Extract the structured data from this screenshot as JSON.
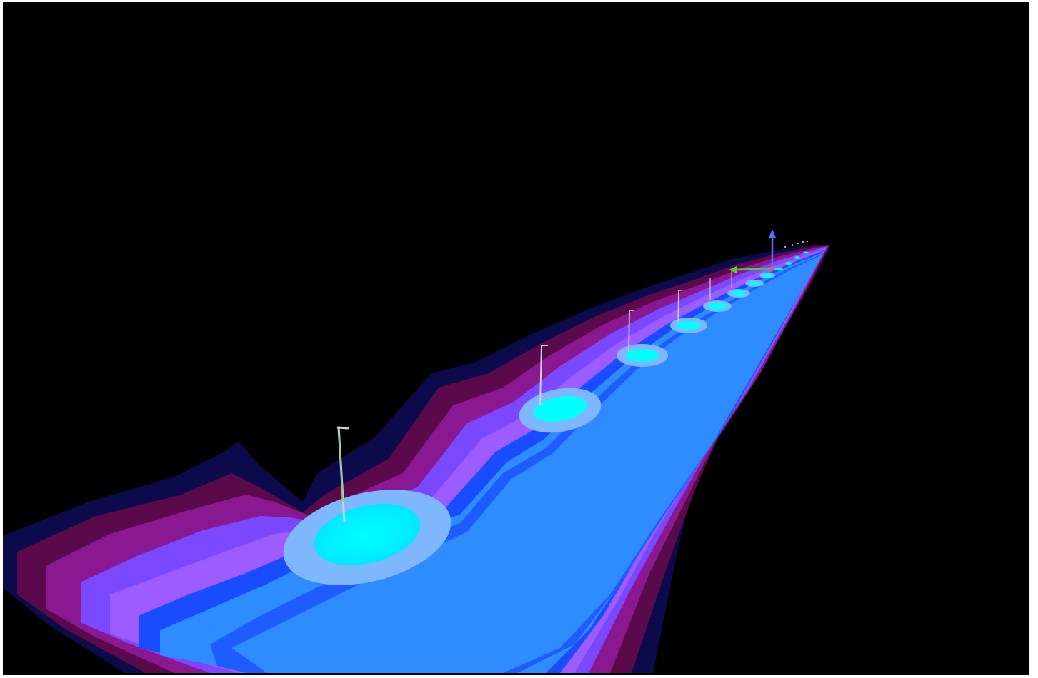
{
  "scene": {
    "background_color": "#000000",
    "frame_color": "#ffffff",
    "palette": {
      "band_outer": "#0b0a4a",
      "band_maroon": "#5a0a4a",
      "band_purple": "#8a1890",
      "band_violet": "#7a48ff",
      "band_lavender": "#9c5cff",
      "band_blue": "#1a4cff",
      "band_sky": "#2f8cff",
      "band_pale": "#7fb7ff",
      "band_cyan": "#00ffff"
    },
    "luminaire_count": 12,
    "pole_icon": "light-pole-icon",
    "axis_up_color": "#5a6cff",
    "axis_side_color": "#55cc33",
    "description_free": true
  }
}
